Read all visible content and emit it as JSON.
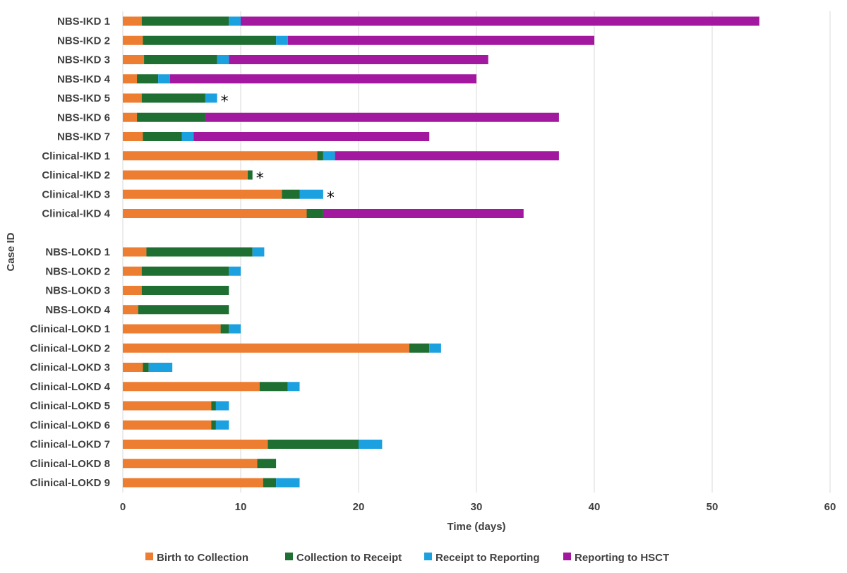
{
  "chart_data": {
    "type": "bar",
    "orientation": "horizontal",
    "stacked": true,
    "title": "",
    "xlabel": "Time (days)",
    "ylabel": "Case ID",
    "xlim": [
      0,
      60
    ],
    "xticks": [
      0,
      10,
      20,
      30,
      40,
      50,
      60
    ],
    "grid": true,
    "legend_position": "bottom",
    "categories": [
      "NBS-IKD 1",
      "NBS-IKD 2",
      "NBS-IKD 3",
      "NBS-IKD 4",
      "NBS-IKD 5",
      "NBS-IKD 6",
      "NBS-IKD 7",
      "Clinical-IKD 1",
      "Clinical-IKD 2",
      "Clinical-IKD 3",
      "Clinical-IKD 4",
      "",
      "NBS-LOKD 1",
      "NBS-LOKD 2",
      "NBS-LOKD 3",
      "NBS-LOKD 4",
      "Clinical-LOKD 1",
      "Clinical-LOKD 2",
      "Clinical-LOKD 3",
      "Clinical-LOKD 4",
      "Clinical-LOKD 5",
      "Clinical-LOKD 6",
      "Clinical-LOKD 7",
      "Clinical-LOKD 8",
      "Clinical-LOKD 9"
    ],
    "series": [
      {
        "name": "Birth to Collection",
        "color": "#ed7d31",
        "values": [
          1.6,
          1.7,
          1.8,
          1.2,
          1.6,
          1.2,
          1.7,
          16.5,
          10.6,
          13.5,
          15.6,
          0,
          2.0,
          1.6,
          1.6,
          1.3,
          8.3,
          24.3,
          1.7,
          11.6,
          7.5,
          7.5,
          12.3,
          11.4,
          11.9
        ]
      },
      {
        "name": "Collection to Receipt",
        "color": "#1e6f31",
        "values": [
          7.4,
          11.3,
          6.2,
          1.8,
          5.4,
          5.8,
          3.3,
          0.5,
          0.4,
          1.5,
          1.4,
          0,
          9.0,
          7.4,
          7.4,
          7.7,
          0.7,
          1.7,
          0.5,
          2.4,
          0.4,
          0.4,
          7.7,
          1.6,
          1.1
        ]
      },
      {
        "name": "Receipt to Reporting",
        "color": "#1ba1df",
        "values": [
          1.0,
          1.0,
          1.0,
          1.0,
          1.0,
          0,
          1.0,
          1.0,
          0,
          2.0,
          0,
          0,
          1.0,
          1.0,
          0,
          0,
          1.0,
          1.0,
          2.0,
          1.0,
          1.1,
          1.1,
          2.0,
          0,
          2.0
        ]
      },
      {
        "name": "Reporting to HSCT",
        "color": "#a2189f",
        "values": [
          44.0,
          26.0,
          22.0,
          26.0,
          0,
          30.0,
          20.0,
          19.0,
          0,
          0,
          17.0,
          0,
          0,
          0,
          0,
          0,
          0,
          0,
          0,
          0,
          0,
          0,
          0,
          0,
          0
        ]
      }
    ],
    "annotations": [
      {
        "category": "NBS-IKD 5",
        "text": "*"
      },
      {
        "category": "Clinical-IKD 2",
        "text": "*"
      },
      {
        "category": "Clinical-IKD 3",
        "text": "*"
      }
    ]
  }
}
